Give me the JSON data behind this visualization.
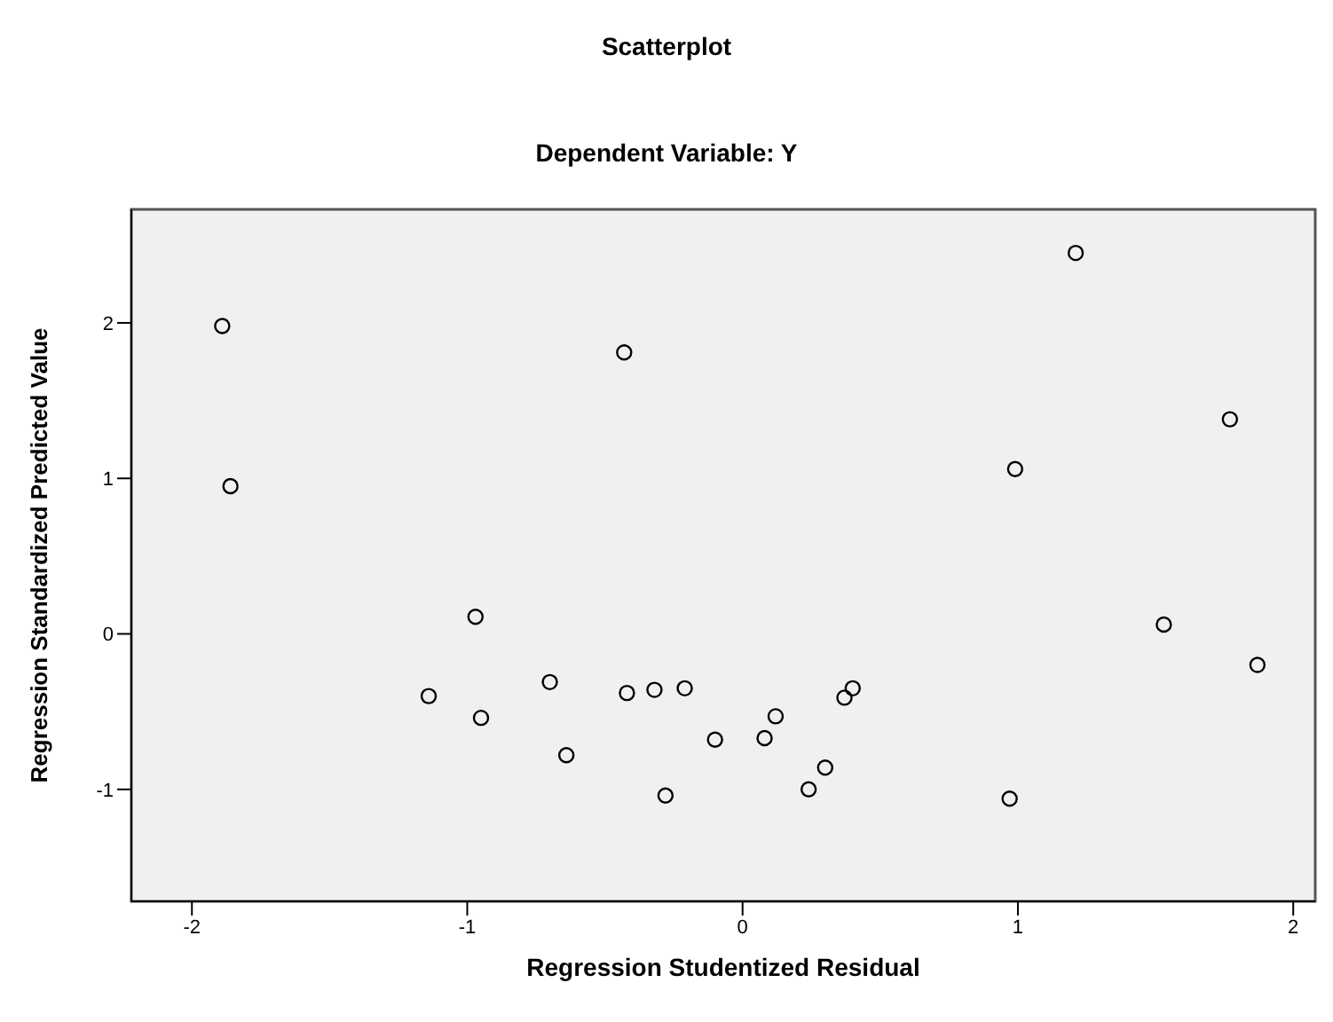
{
  "chart_data": {
    "type": "scatter",
    "title": "Scatterplot",
    "subtitle": "Dependent Variable: Y",
    "xlabel": "Regression Studentized Residual",
    "ylabel": "Regression Standardized Predicted Value",
    "x": [
      -1.89,
      -1.86,
      -0.43,
      1.21,
      0.99,
      1.77,
      -0.97,
      -1.14,
      -0.95,
      -0.7,
      -0.64,
      -0.42,
      -0.32,
      -0.21,
      -0.28,
      -0.1,
      0.08,
      0.12,
      0.3,
      0.37,
      0.4,
      0.24,
      0.97,
      1.53,
      1.87
    ],
    "values": [
      1.98,
      0.95,
      1.81,
      2.45,
      1.06,
      1.38,
      0.11,
      -0.4,
      -0.54,
      -0.31,
      -0.78,
      -0.38,
      -0.36,
      -0.35,
      -1.04,
      -0.68,
      -0.67,
      -0.53,
      -0.86,
      -0.41,
      -0.35,
      -1.0,
      -1.06,
      0.06,
      -0.2
    ],
    "color": "#000000",
    "marker": "circle",
    "xlim": [
      -2.22,
      2.08
    ],
    "ylim": [
      -1.72,
      2.73
    ],
    "xticks": [
      -2,
      -1,
      0,
      1,
      2
    ],
    "yticks": [
      -1,
      0,
      1,
      2
    ]
  }
}
